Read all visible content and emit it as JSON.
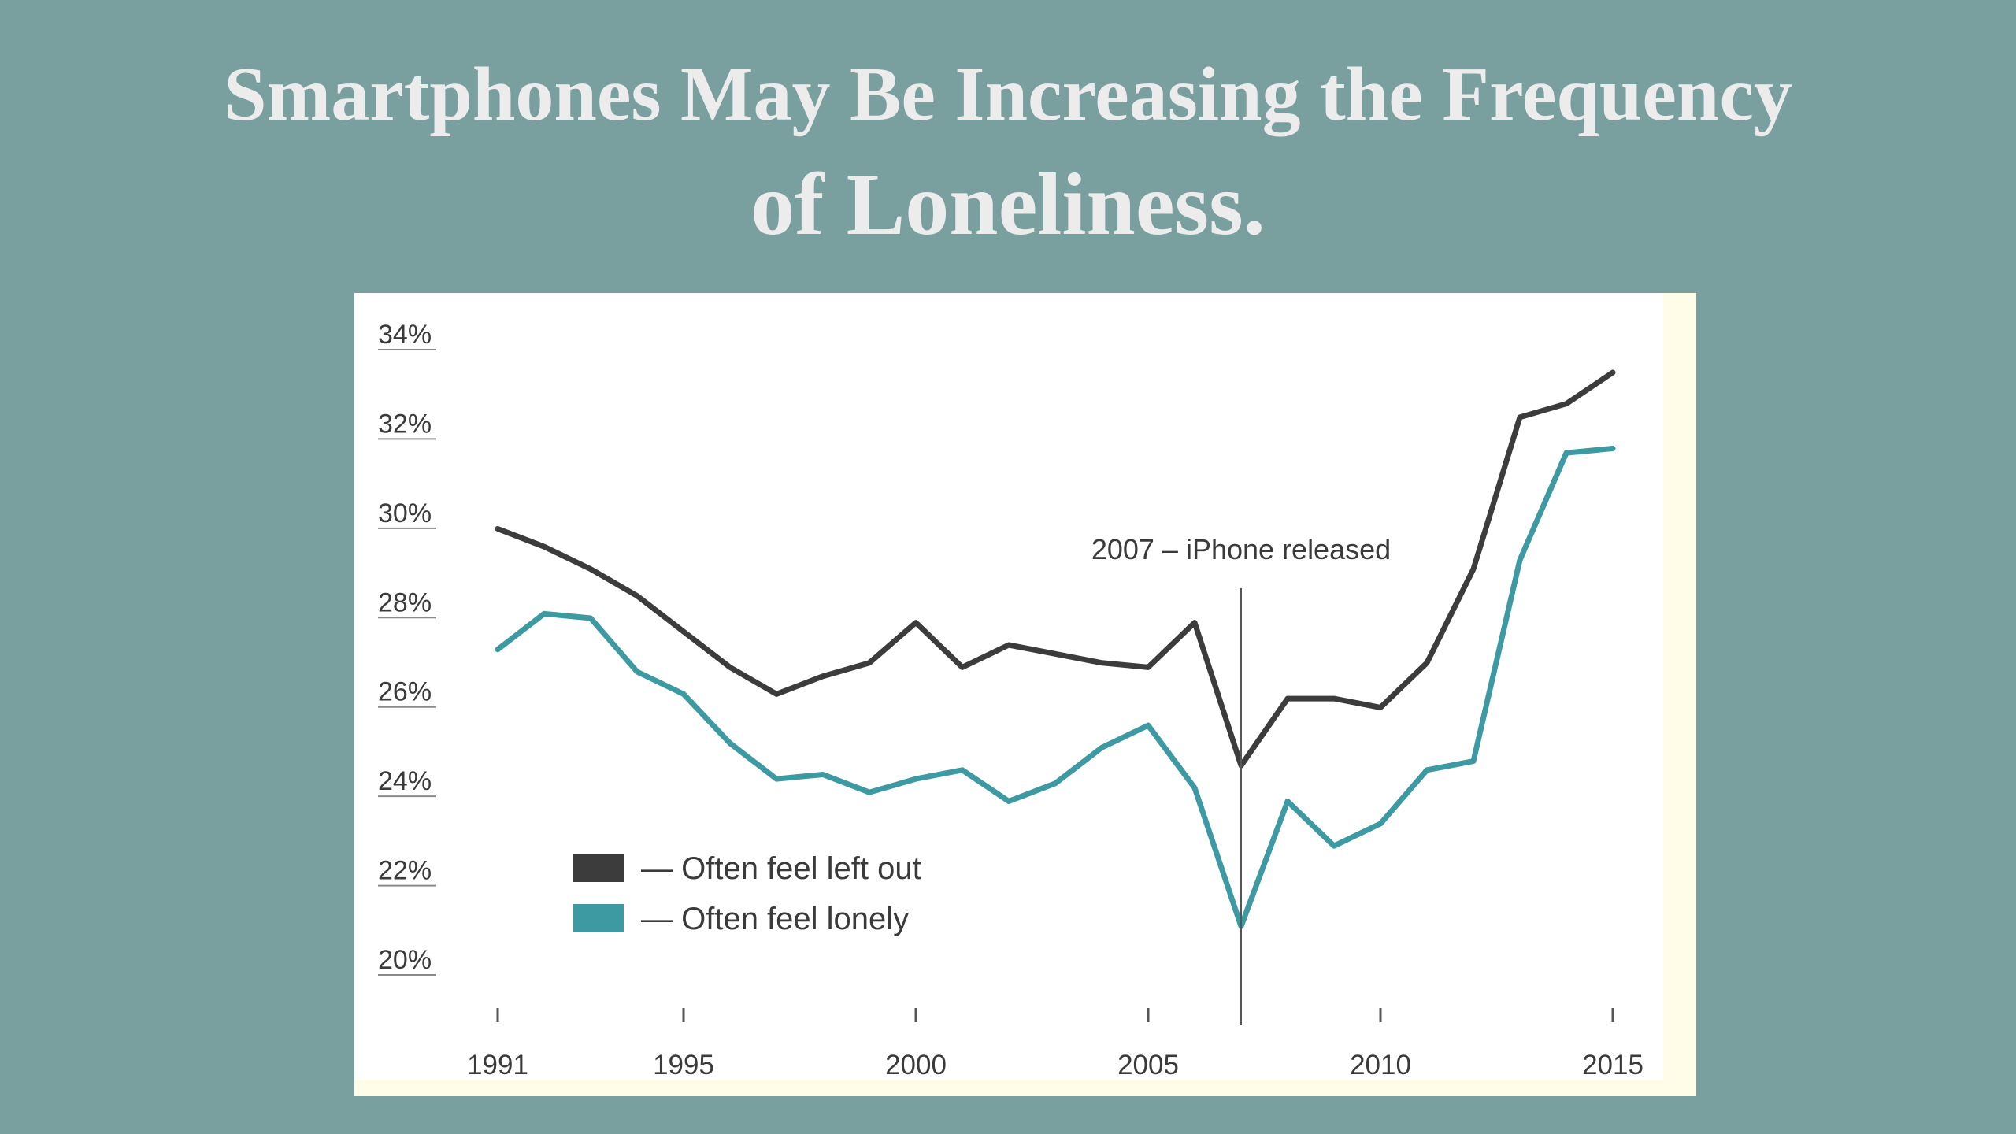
{
  "slide": {
    "title_line1": "Smartphones May Be Increasing the Frequency",
    "title_line2": "of Loneliness."
  },
  "colors": {
    "background": "#7a9f9f",
    "title": "#ececec",
    "left_out": "#3c3c3c",
    "lonely": "#3d9aa2",
    "card": "#ffffff",
    "card_edge": "#fffde8"
  },
  "chart_data": {
    "type": "line",
    "x": [
      1991,
      1992,
      1993,
      1994,
      1995,
      1996,
      1997,
      1998,
      1999,
      2000,
      2001,
      2002,
      2003,
      2004,
      2005,
      2006,
      2007,
      2008,
      2009,
      2010,
      2011,
      2012,
      2013,
      2014,
      2015
    ],
    "series": [
      {
        "name": "— Often feel left out",
        "color": "#3c3c3c",
        "values": [
          29.6,
          29.2,
          28.7,
          28.1,
          27.3,
          26.5,
          25.9,
          26.3,
          26.6,
          27.5,
          26.5,
          27.0,
          26.8,
          26.6,
          26.5,
          27.5,
          24.3,
          25.8,
          25.8,
          25.6,
          26.6,
          28.7,
          32.1,
          32.4,
          33.1
        ]
      },
      {
        "name": "— Often feel lonely",
        "color": "#3d9aa2",
        "values": [
          26.9,
          27.7,
          27.6,
          26.4,
          25.9,
          24.8,
          24.0,
          24.1,
          23.7,
          24.0,
          24.2,
          23.5,
          23.9,
          24.7,
          25.2,
          23.8,
          20.7,
          23.5,
          22.5,
          23.0,
          24.2,
          24.4,
          28.9,
          31.3,
          31.4
        ]
      }
    ],
    "yticks": [
      "34%",
      "32%",
      "30%",
      "28%",
      "26%",
      "24%",
      "22%",
      "20%"
    ],
    "ytick_values": [
      34,
      32,
      30,
      28,
      26,
      24,
      22,
      20
    ],
    "xticks": [
      "1991",
      "1995",
      "2000",
      "2005",
      "2010",
      "2015"
    ],
    "xtick_values": [
      1991,
      1995,
      2000,
      2005,
      2010,
      2015
    ],
    "xlim": [
      1991,
      2015
    ],
    "ylim": [
      20,
      34
    ],
    "annotation": {
      "text": "2007 – iPhone released",
      "x": 2007
    },
    "legend_position": "bottom-left",
    "grid": false
  }
}
